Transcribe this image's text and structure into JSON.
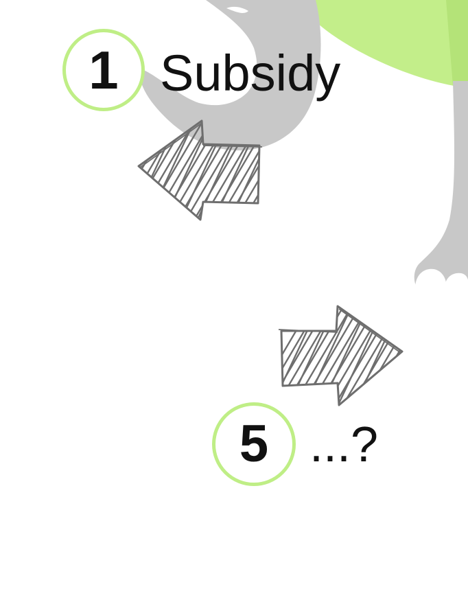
{
  "steps": [
    {
      "number": "1",
      "label": "Subsidy"
    },
    {
      "number": "5",
      "label": "...?"
    }
  ],
  "icons": {
    "background": "elephant-illustration",
    "arrow_left": "hatched-arrow-left-icon",
    "arrow_right": "hatched-arrow-right-icon"
  },
  "colors": {
    "badge_ring": "#bfee86",
    "elephant_body": "#c8c8c8",
    "elephant_green": "#c3ee8a",
    "arrow_stroke": "#6e6e6e",
    "text": "#111111"
  }
}
